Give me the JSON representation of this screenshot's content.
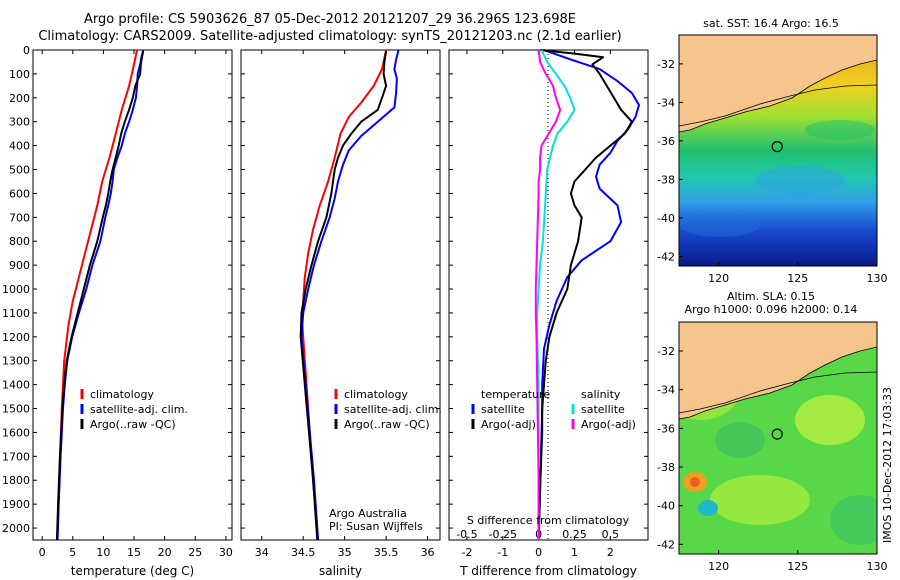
{
  "header": {
    "line1": "Argo profile: CS 5903626_87 05-Dec-2012 20121207_29 36.296S 123.698E",
    "line2": "Climatology: CARS2009. Satellite-adjusted climatology: synTS_20121203.nc (2.1d earlier)"
  },
  "colors": {
    "climatology": "#ff0000",
    "satellite": "#0000ff",
    "argo": "#000000",
    "salinity_sat": "#00e0e0",
    "salinity_argo": "#ff00ff",
    "land": "#f5c58c"
  },
  "footer_note": "Argo Australia",
  "footer_pi": "PI: Susan Wijffels",
  "stamp": "IMOS 10-Dec-2012 17:03:33",
  "chart_data": [
    {
      "type": "line",
      "xlabel": "temperature (deg C)",
      "ylim": [
        2050,
        0
      ],
      "xlim": [
        -1.5,
        31
      ],
      "xticks": [
        0,
        5,
        10,
        15,
        20,
        25,
        30
      ],
      "yticks": [
        0,
        100,
        200,
        300,
        400,
        500,
        600,
        700,
        800,
        900,
        1000,
        1100,
        1200,
        1300,
        1400,
        1500,
        1600,
        1700,
        1800,
        1900,
        2000
      ],
      "legend": [
        "climatology",
        "satellite-adj. clim.",
        "Argo(..raw -QC)"
      ],
      "series": [
        {
          "name": "climatology",
          "color": "#ff0000",
          "depth": [
            0,
            60,
            150,
            250,
            350,
            450,
            550,
            650,
            750,
            850,
            950,
            1050,
            1150,
            1300,
            1500,
            1800,
            2050
          ],
          "values": [
            15.5,
            15,
            14.2,
            13,
            12,
            11,
            9.8,
            9,
            8,
            7,
            6,
            5,
            4.3,
            3.6,
            3.2,
            2.8,
            2.5
          ]
        },
        {
          "name": "satellite-adj. clim.",
          "color": "#0000ff",
          "depth": [
            0,
            30,
            60,
            100,
            150,
            200,
            250,
            300,
            350,
            400,
            450,
            500,
            550,
            600,
            650,
            700,
            800,
            900,
            1000,
            1100,
            1200,
            1300,
            1400,
            1500,
            1700,
            1900,
            2050
          ],
          "values": [
            16.5,
            16.2,
            16,
            15.6,
            15.5,
            15.3,
            14.8,
            14.2,
            13.5,
            13,
            12.3,
            11.7,
            11.5,
            11.2,
            10.8,
            10.3,
            9.5,
            8.2,
            7.2,
            6,
            4.9,
            4.1,
            3.7,
            3.4,
            3,
            2.7,
            2.5
          ]
        },
        {
          "name": "Argo(..raw -QC)",
          "color": "#000000",
          "depth": [
            5,
            30,
            60,
            100,
            150,
            200,
            250,
            300,
            350,
            400,
            450,
            500,
            550,
            600,
            650,
            700,
            800,
            900,
            1000,
            1100,
            1200,
            1300,
            1400,
            1500,
            1700,
            1900,
            2050
          ],
          "values": [
            16.5,
            16.3,
            16.1,
            16,
            15.2,
            14.8,
            14.2,
            13.5,
            12.9,
            12.5,
            12,
            11.5,
            11.1,
            10.8,
            10.4,
            9.9,
            9,
            7.8,
            6.8,
            5.8,
            4.8,
            4,
            3.6,
            3.3,
            2.9,
            2.6,
            2.4
          ]
        }
      ]
    },
    {
      "type": "line",
      "xlabel": "salinity",
      "ylim": [
        2050,
        0
      ],
      "xlim": [
        33.75,
        36.15
      ],
      "xticks": [
        34,
        34.5,
        35,
        35.5,
        36
      ],
      "legend": [
        "climatology",
        "satellite-adj. clim.",
        "Argo(..raw -QC)"
      ],
      "series": [
        {
          "name": "climatology",
          "color": "#ff0000",
          "depth": [
            0,
            80,
            150,
            220,
            280,
            350,
            450,
            550,
            650,
            750,
            850,
            950,
            1050,
            1150,
            1300,
            1500,
            1800,
            2050
          ],
          "values": [
            35.5,
            35.45,
            35.35,
            35.2,
            35.05,
            34.95,
            34.88,
            34.8,
            34.7,
            34.62,
            34.56,
            34.52,
            34.5,
            34.49,
            34.52,
            34.56,
            34.62,
            34.68
          ]
        },
        {
          "name": "satellite-adj. clim.",
          "color": "#0000ff",
          "depth": [
            0,
            40,
            80,
            120,
            180,
            240,
            300,
            360,
            420,
            480,
            550,
            620,
            700,
            800,
            900,
            1000,
            1100,
            1200,
            1400,
            1600,
            1800,
            2050
          ],
          "values": [
            35.65,
            35.62,
            35.6,
            35.63,
            35.62,
            35.6,
            35.4,
            35.2,
            35.05,
            34.98,
            34.92,
            34.88,
            34.82,
            34.72,
            34.63,
            34.56,
            34.5,
            34.48,
            34.53,
            34.58,
            34.63,
            34.68
          ]
        },
        {
          "name": "Argo(..raw -QC)",
          "color": "#000000",
          "depth": [
            5,
            50,
            100,
            150,
            200,
            250,
            300,
            350,
            400,
            450,
            500,
            550,
            600,
            700,
            800,
            900,
            1000,
            1100,
            1200,
            1400,
            1600,
            1800,
            2050
          ],
          "values": [
            35.5,
            35.48,
            35.47,
            35.5,
            35.45,
            35.4,
            35.2,
            35.08,
            34.98,
            34.92,
            34.88,
            34.86,
            34.84,
            34.78,
            34.68,
            34.6,
            34.53,
            34.48,
            34.47,
            34.52,
            34.57,
            34.62,
            34.67
          ]
        }
      ]
    },
    {
      "type": "line",
      "xlabel": "T difference from climatology",
      "xlabel_top": "S difference from climatology",
      "ylim": [
        2050,
        0
      ],
      "xlim": [
        -2.5,
        3.05
      ],
      "xticks": [
        -2,
        -1,
        0,
        1,
        2
      ],
      "xticks_top": [
        "-0.5",
        "-0.25",
        "0",
        "0.25",
        "0.5"
      ],
      "legend_headers": [
        "temperature",
        "salinity"
      ],
      "legend": [
        "satellite",
        "Argo(-adj)",
        "satellite",
        "Argo(-adj)"
      ],
      "series": [
        {
          "name": "satellite",
          "quantity": "temperature",
          "color": "#0000ff",
          "depth": [
            0,
            40,
            80,
            130,
            180,
            230,
            280,
            330,
            380,
            430,
            480,
            530,
            580,
            650,
            720,
            800,
            880,
            950,
            1050,
            1150,
            1250,
            1400,
            1600,
            1800,
            2050
          ],
          "values": [
            0.15,
            0.9,
            1.7,
            2.2,
            2.6,
            2.8,
            2.7,
            2.5,
            2.2,
            2.0,
            1.7,
            1.6,
            1.7,
            2.2,
            2.3,
            2.0,
            1.2,
            0.8,
            0.5,
            0.3,
            0.15,
            0.1,
            0.1,
            0.05,
            0
          ]
        },
        {
          "name": "Argo(-adj)",
          "quantity": "temperature",
          "color": "#000000",
          "depth": [
            0,
            15,
            30,
            60,
            100,
            150,
            200,
            250,
            300,
            350,
            400,
            450,
            500,
            550,
            600,
            650,
            700,
            800,
            900,
            1000,
            1100,
            1200,
            1300,
            1500,
            1800,
            2050
          ],
          "values": [
            0.05,
            1.0,
            1.8,
            1.5,
            1.7,
            1.9,
            2.1,
            2.3,
            2.6,
            2.4,
            2.0,
            1.6,
            1.3,
            1.0,
            0.9,
            1.0,
            1.2,
            1.1,
            0.9,
            0.8,
            0.5,
            0.3,
            0.2,
            0.1,
            0.05,
            0
          ]
        },
        {
          "name": "satellite",
          "quantity": "salinity",
          "color": "#00e0e0",
          "depth": [
            0,
            50,
            100,
            150,
            200,
            250,
            300,
            350,
            400,
            450,
            500,
            600,
            700,
            800,
            900,
            1000,
            1100,
            1200,
            1400,
            1600,
            1800,
            2050
          ],
          "values": [
            0.02,
            0.06,
            0.12,
            0.18,
            0.22,
            0.25,
            0.2,
            0.13,
            0.1,
            0.08,
            0.06,
            0.05,
            0.04,
            0.03,
            0.01,
            0,
            -0.01,
            -0.01,
            0,
            0,
            0,
            0
          ]
        },
        {
          "name": "Argo(-adj)",
          "quantity": "salinity",
          "color": "#ff00ff",
          "depth": [
            0,
            50,
            100,
            150,
            200,
            250,
            300,
            350,
            400,
            450,
            500,
            550,
            600,
            700,
            800,
            900,
            1000,
            1100,
            1200,
            1400,
            1600,
            1800,
            2050
          ],
          "values": [
            0,
            0.01,
            0.05,
            0.1,
            0.12,
            0.15,
            0.12,
            0.07,
            0.02,
            0.01,
            0.01,
            0,
            0,
            -0.005,
            -0.01,
            -0.015,
            -0.02,
            -0.02,
            -0.015,
            -0.01,
            -0.005,
            0,
            0
          ]
        }
      ]
    },
    {
      "type": "heatmap",
      "title": "sat. SST: 16.4  Argo: 16.5",
      "xlim": [
        117.5,
        130
      ],
      "ylim": [
        -42.5,
        -30.5
      ],
      "xticks": [
        120,
        125,
        130
      ],
      "yticks": [
        -32,
        -34,
        -36,
        -38,
        -40,
        -42
      ],
      "marker": {
        "lon": 123.698,
        "lat": -36.296
      }
    },
    {
      "type": "heatmap",
      "title_line1": "Altim. SLA: 0.15",
      "title_line2": "Argo h1000: 0.096 h2000: 0.14",
      "xlim": [
        117.5,
        130
      ],
      "ylim": [
        -42.5,
        -30.5
      ],
      "xticks": [
        120,
        125,
        130
      ],
      "yticks": [
        -32,
        -34,
        -36,
        -38,
        -40,
        -42
      ],
      "marker": {
        "lon": 123.698,
        "lat": -36.296
      }
    }
  ]
}
